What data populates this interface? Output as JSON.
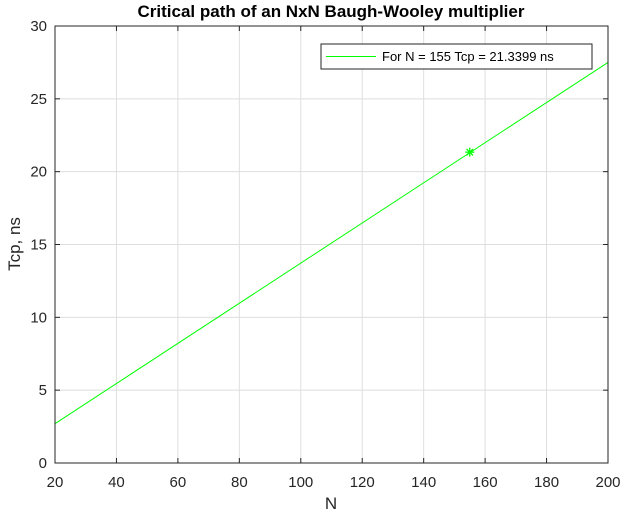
{
  "chart_data": {
    "type": "line",
    "title": "Critical path of an NxN Baugh-Wooley multiplier",
    "xlabel": "N",
    "ylabel": "Tcp, ns",
    "xlim": [
      20,
      200
    ],
    "ylim": [
      0,
      30
    ],
    "xticks": [
      20,
      40,
      60,
      80,
      100,
      120,
      140,
      160,
      180,
      200
    ],
    "yticks": [
      0,
      5,
      10,
      15,
      20,
      25,
      30
    ],
    "grid": true,
    "legend_position": "top-right",
    "series": [
      {
        "name": "For N = 155 Tcp = 21.3399 ns",
        "color": "#00ff00",
        "x": [
          20,
          200
        ],
        "y": [
          2.7,
          27.5
        ]
      }
    ],
    "marker": {
      "x": 155,
      "y": 21.3399,
      "symbol": "asterisk",
      "color": "#00ff00"
    }
  }
}
